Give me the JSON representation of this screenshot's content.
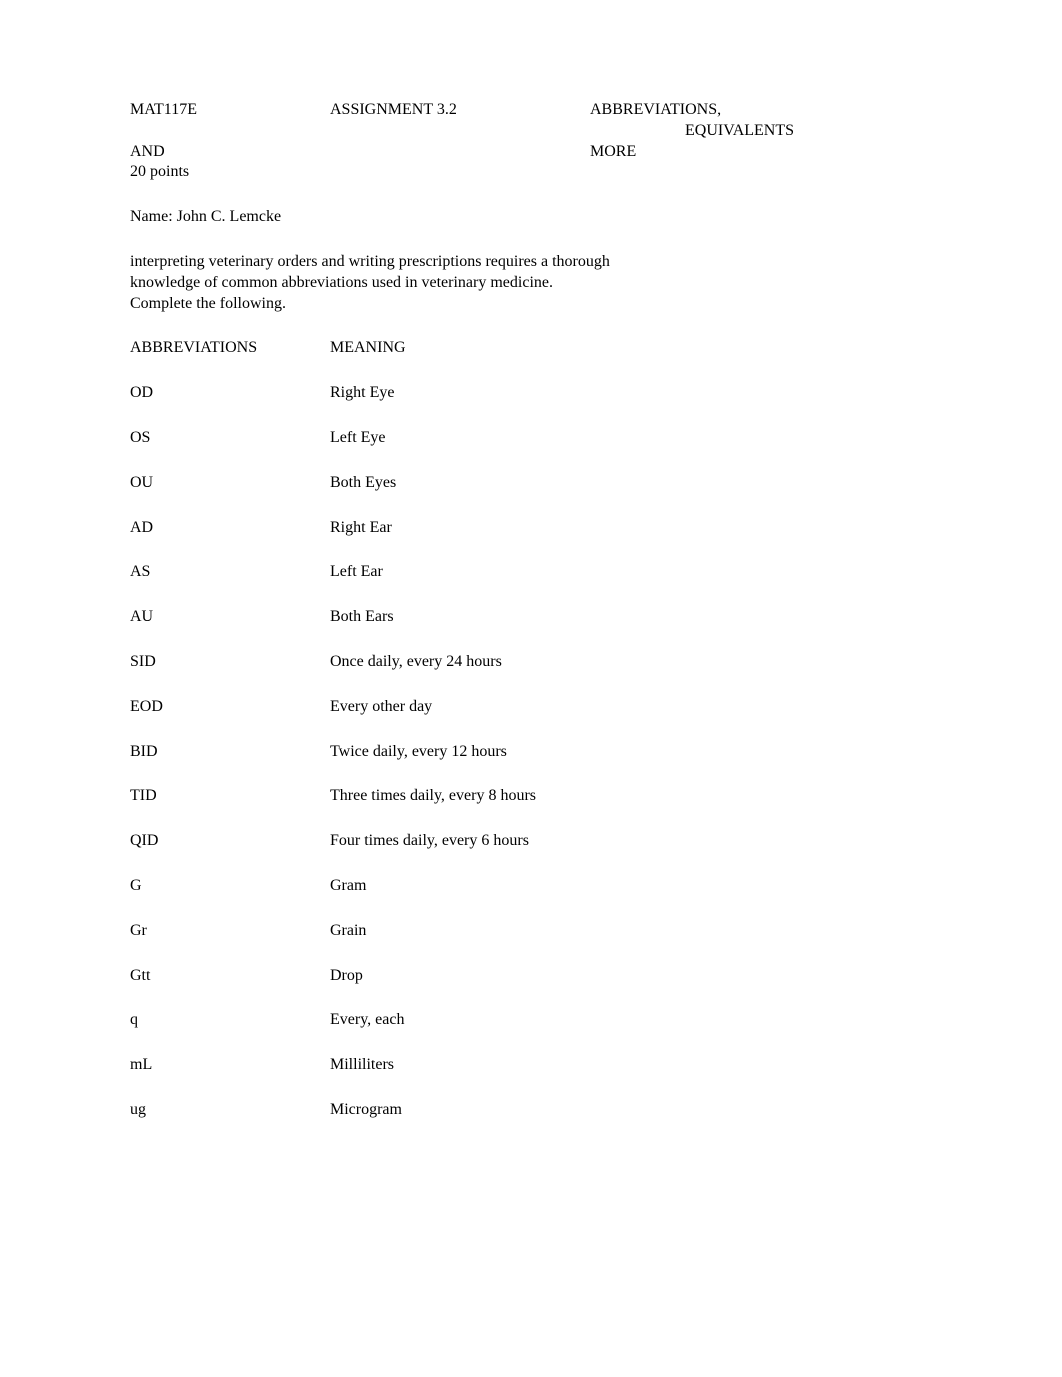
{
  "header": {
    "course": "MAT117E",
    "assignment": "ASSIGNMENT 3.2",
    "topic_line1": "ABBREVIATIONS,",
    "topic_line2": "EQUIVALENTS",
    "and": "AND",
    "topic_line3": "MORE",
    "points": "20 points"
  },
  "name_label": "Name: ",
  "name_value": "John C. Lemcke",
  "intro_line1": "interpreting veterinary orders and writing prescriptions requires a thorough",
  "intro_line2": "knowledge of common abbreviations used in veterinary medicine.",
  "intro_line3": "Complete the following.",
  "columns": {
    "abbrev": "ABBREVIATIONS",
    "meaning": "MEANING"
  },
  "rows": [
    {
      "abbrev": "OD",
      "meaning": "Right Eye"
    },
    {
      "abbrev": "OS",
      "meaning": "Left Eye"
    },
    {
      "abbrev": "OU",
      "meaning": "Both Eyes"
    },
    {
      "abbrev": "AD",
      "meaning": "Right Ear"
    },
    {
      "abbrev": "AS",
      "meaning": "Left Ear"
    },
    {
      "abbrev": "AU",
      "meaning": "Both Ears"
    },
    {
      "abbrev": "SID",
      "meaning": "Once daily, every 24 hours"
    },
    {
      "abbrev": "EOD",
      "meaning": "Every other day"
    },
    {
      "abbrev": "BID",
      "meaning": "Twice daily, every 12 hours"
    },
    {
      "abbrev": "TID",
      "meaning": "Three times daily, every 8 hours"
    },
    {
      "abbrev": "QID",
      "meaning": "Four times daily, every 6 hours"
    },
    {
      "abbrev": "G",
      "meaning": "Gram"
    },
    {
      "abbrev": "Gr",
      "meaning": "Grain"
    },
    {
      "abbrev": "Gtt",
      "meaning": "Drop"
    },
    {
      "abbrev": "q",
      "meaning": "Every, each"
    },
    {
      "abbrev": "mL",
      "meaning": "Milliliters"
    },
    {
      "abbrev": "ug",
      "meaning": "Microgram"
    }
  ]
}
